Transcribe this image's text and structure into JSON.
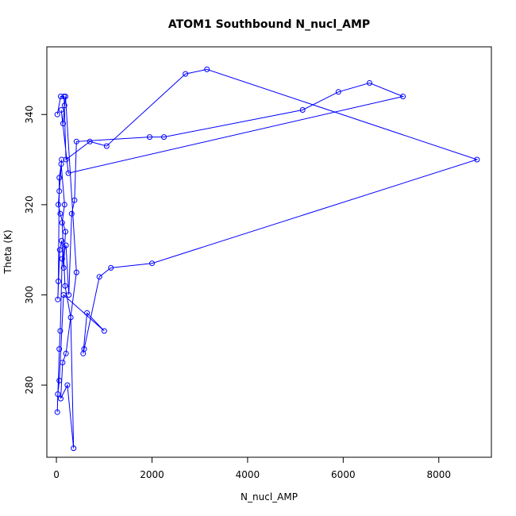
{
  "chart_data": {
    "type": "line",
    "title": "ATOM1 Southbound N_nucl_AMP",
    "xlabel": "N_nucl_AMP",
    "ylabel": "Theta (K)",
    "xlim": [
      -200,
      9100
    ],
    "ylim": [
      264,
      355
    ],
    "x_ticks": [
      0,
      2000,
      4000,
      6000,
      8000
    ],
    "y_ticks": [
      280,
      300,
      320,
      340
    ],
    "grid": false,
    "legend": "none",
    "series_color": "#0000ff",
    "marker": "open-circle",
    "series": [
      {
        "name": "",
        "points": [
          [
            20,
            340
          ],
          [
            90,
            344
          ],
          [
            160,
            344
          ],
          [
            200,
            330
          ],
          [
            700,
            334
          ],
          [
            1050,
            333
          ],
          [
            2700,
            349
          ],
          [
            3150,
            350
          ],
          [
            8800,
            330
          ],
          [
            2000,
            307
          ],
          [
            1140,
            306
          ],
          [
            900,
            304
          ],
          [
            580,
            288
          ],
          [
            560,
            287
          ],
          [
            640,
            296
          ],
          [
            1000,
            292
          ],
          [
            150,
            300
          ],
          [
            60,
            281
          ],
          [
            30,
            278
          ],
          [
            20,
            274
          ],
          [
            60,
            288
          ],
          [
            80,
            292
          ],
          [
            120,
            308
          ],
          [
            200,
            311
          ],
          [
            260,
            300
          ],
          [
            320,
            318
          ],
          [
            380,
            321
          ],
          [
            420,
            334
          ],
          [
            1950,
            335
          ],
          [
            2250,
            335
          ],
          [
            5150,
            341
          ],
          [
            5900,
            345
          ],
          [
            6550,
            347
          ],
          [
            7250,
            344
          ],
          [
            250,
            327
          ],
          [
            100,
            341
          ],
          [
            140,
            338
          ],
          [
            170,
            342
          ],
          [
            190,
            344
          ],
          [
            420,
            305
          ],
          [
            200,
            287
          ],
          [
            130,
            285
          ],
          [
            90,
            277
          ],
          [
            230,
            280
          ],
          [
            360,
            266
          ],
          [
            300,
            295
          ],
          [
            180,
            302
          ],
          [
            120,
            316
          ],
          [
            170,
            320
          ],
          [
            100,
            329
          ],
          [
            60,
            326
          ],
          [
            40,
            303
          ],
          [
            30,
            299
          ],
          [
            70,
            310
          ],
          [
            110,
            312
          ],
          [
            150,
            306
          ],
          [
            190,
            314
          ],
          [
            80,
            318
          ],
          [
            40,
            320
          ],
          [
            60,
            323
          ],
          [
            110,
            330
          ]
        ]
      }
    ]
  }
}
